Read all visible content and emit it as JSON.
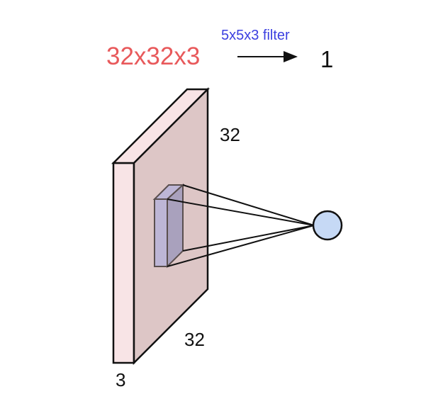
{
  "labels": {
    "input_dims": "32x32x3",
    "filter": "5x5x3 filter",
    "output": "1",
    "height": "32",
    "width": "32",
    "depth": "3"
  },
  "colors": {
    "input_dims_text": "#e8595b",
    "filter_text": "#3b3fe0",
    "volume_front": "#f8e4e6",
    "volume_side": "#ddc6c6",
    "filter_front": "#bdb6d6",
    "filter_side": "#a9a1bd",
    "neuron_fill": "#c6d9f5",
    "stroke": "#111111"
  }
}
